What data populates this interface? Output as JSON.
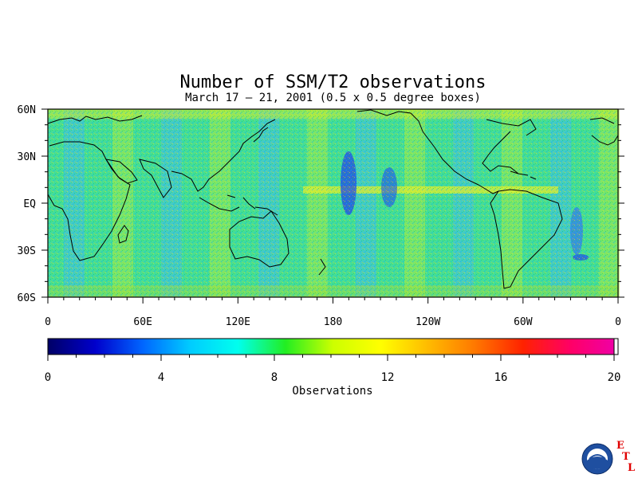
{
  "title": "Number of SSM/T2 observations",
  "subtitle": "March 17 – 21, 2001 (0.5 x 0.5 degree boxes)",
  "lat_labels": [
    "60N",
    "30N",
    "EQ",
    "30S",
    "60S"
  ],
  "lon_labels": [
    "0",
    "60E",
    "120E",
    "180",
    "120W",
    "60W",
    "0"
  ],
  "colorbar": {
    "label": "Observations",
    "ticks": [
      "0",
      "4",
      "8",
      "12",
      "16",
      "20"
    ],
    "range": [
      0,
      20
    ],
    "colors": [
      "#000066",
      "#0000cc",
      "#0066ff",
      "#00ccff",
      "#00ffee",
      "#22ee22",
      "#ccff00",
      "#ffff00",
      "#ffbb00",
      "#ff7700",
      "#ff2200",
      "#ff0066",
      "#ee00aa"
    ]
  },
  "logo": {
    "name": "NOAA",
    "org_letters": [
      "E",
      "T",
      "L"
    ]
  },
  "map_extent": {
    "lat": [
      -60,
      60
    ],
    "lon": [
      0,
      360
    ]
  }
}
